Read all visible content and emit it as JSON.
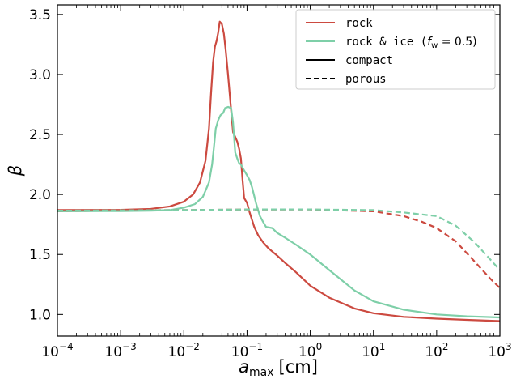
{
  "chart_data": {
    "type": "line",
    "xlabel": "a_max [cm]",
    "xlabel_main": "a",
    "xlabel_sub": "max",
    "xlabel_unit": "[cm]",
    "ylabel": "β",
    "xscale": "log",
    "xlim": [
      0.0001,
      1000
    ],
    "ylim": [
      0.82,
      3.58
    ],
    "x_ticks": [
      {
        "value": 0.0001,
        "base": "10",
        "exp": "−4"
      },
      {
        "value": 0.001,
        "base": "10",
        "exp": "−3"
      },
      {
        "value": 0.01,
        "base": "10",
        "exp": "−2"
      },
      {
        "value": 0.1,
        "base": "10",
        "exp": "−1"
      },
      {
        "value": 1,
        "base": "10",
        "exp": "0"
      },
      {
        "value": 10,
        "base": "10",
        "exp": "1"
      },
      {
        "value": 100,
        "base": "10",
        "exp": "2"
      },
      {
        "value": 1000,
        "base": "10",
        "exp": "3"
      }
    ],
    "y_ticks": [
      {
        "value": 1.0,
        "label": "1.0"
      },
      {
        "value": 1.5,
        "label": "1.5"
      },
      {
        "value": 2.0,
        "label": "2.0"
      },
      {
        "value": 2.5,
        "label": "2.5"
      },
      {
        "value": 3.0,
        "label": "3.0"
      },
      {
        "value": 3.5,
        "label": "3.5"
      }
    ],
    "legend_placement": "top-right",
    "legend": [
      {
        "label": "rock",
        "color": "#cc4a40",
        "dash": "solid"
      },
      {
        "label": "rock & ice (f_w = 0.5)",
        "label_prefix": "rock & ice (",
        "label_math": "f",
        "label_math_sub": "w",
        "label_math_rest": " = 0.5)",
        "label_suffix": ")",
        "color": "#7ecfa8",
        "dash": "solid"
      },
      {
        "label": "compact",
        "color": "#000000",
        "dash": "solid"
      },
      {
        "label": "porous",
        "color": "#000000",
        "dash": "dashed"
      }
    ],
    "series": [
      {
        "name": "rock",
        "variant": "compact",
        "color": "#cc4a40",
        "dash": "solid",
        "points": [
          [
            0.0001,
            1.87
          ],
          [
            0.001,
            1.872
          ],
          [
            0.003,
            1.88
          ],
          [
            0.006,
            1.9
          ],
          [
            0.01,
            1.94
          ],
          [
            0.014,
            2.0
          ],
          [
            0.018,
            2.1
          ],
          [
            0.022,
            2.28
          ],
          [
            0.025,
            2.55
          ],
          [
            0.027,
            2.85
          ],
          [
            0.029,
            3.1
          ],
          [
            0.031,
            3.23
          ],
          [
            0.033,
            3.28
          ],
          [
            0.035,
            3.35
          ],
          [
            0.037,
            3.44
          ],
          [
            0.04,
            3.42
          ],
          [
            0.043,
            3.34
          ],
          [
            0.046,
            3.2
          ],
          [
            0.05,
            3.0
          ],
          [
            0.055,
            2.75
          ],
          [
            0.06,
            2.52
          ],
          [
            0.065,
            2.48
          ],
          [
            0.07,
            2.44
          ],
          [
            0.075,
            2.38
          ],
          [
            0.08,
            2.3
          ],
          [
            0.085,
            2.12
          ],
          [
            0.09,
            1.97
          ],
          [
            0.1,
            1.93
          ],
          [
            0.11,
            1.85
          ],
          [
            0.13,
            1.73
          ],
          [
            0.15,
            1.66
          ],
          [
            0.18,
            1.6
          ],
          [
            0.22,
            1.55
          ],
          [
            0.3,
            1.49
          ],
          [
            0.4,
            1.43
          ],
          [
            0.6,
            1.35
          ],
          [
            1.0,
            1.24
          ],
          [
            2.0,
            1.14
          ],
          [
            5.0,
            1.05
          ],
          [
            10,
            1.01
          ],
          [
            30,
            0.98
          ],
          [
            100,
            0.965
          ],
          [
            300,
            0.955
          ],
          [
            1000,
            0.945
          ]
        ]
      },
      {
        "name": "rock & ice (f_w = 0.5)",
        "variant": "compact",
        "color": "#7ecfa8",
        "dash": "solid",
        "points": [
          [
            0.0001,
            1.86
          ],
          [
            0.001,
            1.862
          ],
          [
            0.003,
            1.865
          ],
          [
            0.006,
            1.87
          ],
          [
            0.01,
            1.89
          ],
          [
            0.015,
            1.92
          ],
          [
            0.02,
            1.98
          ],
          [
            0.025,
            2.1
          ],
          [
            0.028,
            2.25
          ],
          [
            0.03,
            2.4
          ],
          [
            0.032,
            2.55
          ],
          [
            0.035,
            2.62
          ],
          [
            0.038,
            2.66
          ],
          [
            0.042,
            2.68
          ],
          [
            0.045,
            2.72
          ],
          [
            0.05,
            2.73
          ],
          [
            0.056,
            2.72
          ],
          [
            0.06,
            2.6
          ],
          [
            0.065,
            2.35
          ],
          [
            0.07,
            2.3
          ],
          [
            0.075,
            2.26
          ],
          [
            0.08,
            2.25
          ],
          [
            0.09,
            2.2
          ],
          [
            0.1,
            2.16
          ],
          [
            0.11,
            2.12
          ],
          [
            0.12,
            2.06
          ],
          [
            0.14,
            1.92
          ],
          [
            0.16,
            1.82
          ],
          [
            0.18,
            1.77
          ],
          [
            0.2,
            1.73
          ],
          [
            0.25,
            1.72
          ],
          [
            0.3,
            1.68
          ],
          [
            0.4,
            1.64
          ],
          [
            0.6,
            1.58
          ],
          [
            1.0,
            1.5
          ],
          [
            2.0,
            1.37
          ],
          [
            5.0,
            1.2
          ],
          [
            10,
            1.11
          ],
          [
            30,
            1.04
          ],
          [
            100,
            1.0
          ],
          [
            300,
            0.985
          ],
          [
            1000,
            0.975
          ]
        ]
      },
      {
        "name": "rock",
        "variant": "porous",
        "color": "#cc4a40",
        "dash": "dashed",
        "points": [
          [
            0.0001,
            1.865
          ],
          [
            0.01,
            1.87
          ],
          [
            0.1,
            1.875
          ],
          [
            1,
            1.875
          ],
          [
            10,
            1.86
          ],
          [
            30,
            1.82
          ],
          [
            60,
            1.77
          ],
          [
            100,
            1.72
          ],
          [
            200,
            1.61
          ],
          [
            400,
            1.44
          ],
          [
            700,
            1.3
          ],
          [
            1000,
            1.22
          ]
        ]
      },
      {
        "name": "rock & ice (f_w = 0.5)",
        "variant": "porous",
        "color": "#7ecfa8",
        "dash": "dashed",
        "points": [
          [
            0.0001,
            1.865
          ],
          [
            0.01,
            1.87
          ],
          [
            0.1,
            1.875
          ],
          [
            1,
            1.875
          ],
          [
            10,
            1.87
          ],
          [
            30,
            1.85
          ],
          [
            100,
            1.82
          ],
          [
            200,
            1.74
          ],
          [
            400,
            1.6
          ],
          [
            700,
            1.46
          ],
          [
            1000,
            1.37
          ]
        ]
      }
    ]
  }
}
